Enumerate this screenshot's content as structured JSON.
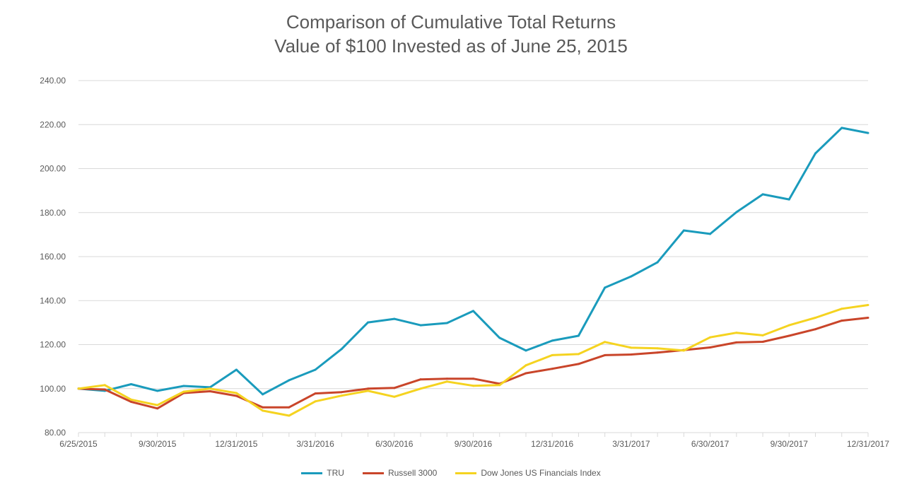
{
  "chart_data": {
    "type": "line",
    "title": "Comparison of Cumulative Total Returns",
    "subtitle": "Value of $100 Invested as of June 25, 2015",
    "xlabel": "",
    "ylabel": "",
    "ylim": [
      80,
      240
    ],
    "yticks": [
      "80.00",
      "100.00",
      "120.00",
      "140.00",
      "160.00",
      "180.00",
      "200.00",
      "220.00",
      "240.00"
    ],
    "grid": true,
    "legend_position": "bottom",
    "x": [
      "6/25/2015",
      "7/31/2015",
      "8/31/2015",
      "9/30/2015",
      "10/31/2015",
      "11/30/2015",
      "12/31/2015",
      "1/31/2016",
      "2/29/2016",
      "3/31/2016",
      "4/30/2016",
      "5/31/2016",
      "6/30/2016",
      "7/31/2016",
      "8/31/2016",
      "9/30/2016",
      "10/31/2016",
      "11/30/2016",
      "12/31/2016",
      "1/31/2017",
      "2/28/2017",
      "3/31/2017",
      "4/30/2017",
      "5/31/2017",
      "6/30/2017",
      "7/31/2017",
      "8/31/2017",
      "9/30/2017",
      "10/31/2017",
      "11/30/2017",
      "12/31/2017"
    ],
    "xtick_labels": [
      "6/25/2015",
      "9/30/2015",
      "12/31/2015",
      "3/31/2016",
      "6/30/2016",
      "9/30/2016",
      "12/31/2016",
      "3/31/2017",
      "6/30/2017",
      "9/30/2017",
      "12/31/2017"
    ],
    "series": [
      {
        "name": "TRU",
        "color": "#1a9bbc",
        "values": [
          100,
          99,
          102,
          99,
          101.2,
          100.6,
          108.6,
          97.4,
          103.8,
          108.6,
          118,
          130.1,
          131.7,
          128.8,
          129.8,
          135.3,
          123.1,
          117.3,
          121.8,
          124,
          145.9,
          151,
          157.4,
          171.9,
          170.3,
          180.2,
          188.3,
          186,
          206.9,
          218.5,
          216.2
        ]
      },
      {
        "name": "Russell 3000",
        "color": "#c9452a",
        "values": [
          100,
          99.6,
          94,
          91,
          98,
          98.8,
          96.7,
          91.5,
          91.5,
          97.8,
          98.4,
          100,
          100.3,
          104.2,
          104.5,
          104.5,
          102.2,
          107,
          109,
          111.2,
          115.2,
          115.5,
          116.4,
          117.5,
          118.7,
          121,
          121.3,
          124,
          127,
          130.9,
          132.2
        ]
      },
      {
        "name": "Dow Jones US Financials Index",
        "color": "#f5d320",
        "values": [
          100,
          101.6,
          95,
          92.5,
          98.6,
          100,
          98,
          90,
          87.7,
          94.2,
          96.8,
          99,
          96.3,
          100,
          103.2,
          101.3,
          101.6,
          110.6,
          115.2,
          115.7,
          121.2,
          118.6,
          118.3,
          117.3,
          123.3,
          125.4,
          124.2,
          128.8,
          132.2,
          136.3,
          138
        ]
      }
    ]
  }
}
